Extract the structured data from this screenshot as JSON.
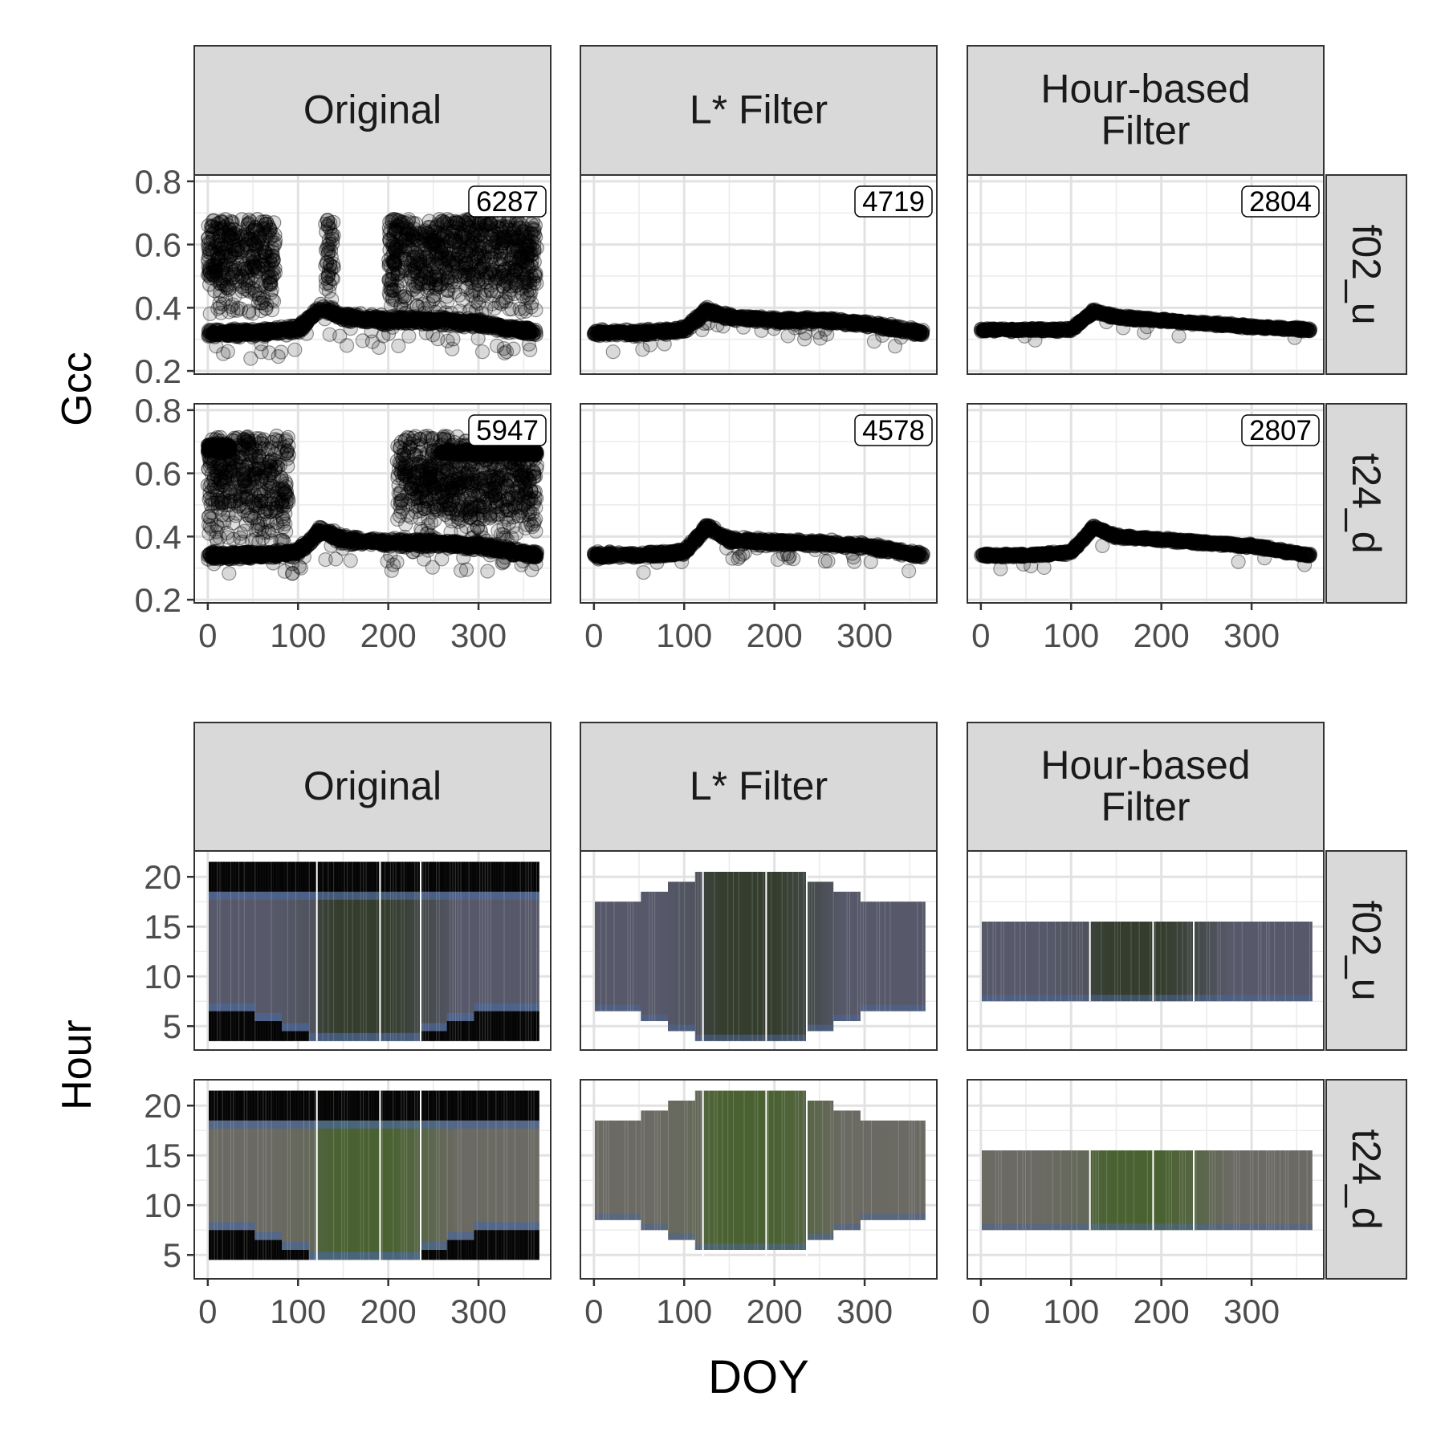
{
  "chart_data": [
    {
      "type": "scatter",
      "ylabel": "Gcc",
      "columns": [
        "Original",
        "L* Filter",
        "Hour-based Filter"
      ],
      "rows": [
        "f02_u",
        "t24_d"
      ],
      "x_ticks": [
        0,
        100,
        200,
        300
      ],
      "y_ticks": [
        0.2,
        0.4,
        0.6,
        0.8
      ],
      "xlim": [
        -15,
        380
      ],
      "ylim": [
        0.19,
        0.82
      ],
      "grid": true,
      "counts": [
        [
          "6287",
          "4719",
          "2804"
        ],
        [
          "5947",
          "4578",
          "2807"
        ]
      ],
      "series": [
        {
          "name": "",
          "panel": "Original|f02_u",
          "x": [
            0,
            50,
            100,
            125,
            150,
            200,
            250,
            300,
            365
          ],
          "y": [
            0.32,
            0.32,
            0.33,
            0.4,
            0.37,
            0.36,
            0.36,
            0.35,
            0.32
          ]
        },
        {
          "name": "",
          "panel": "L* Filter|f02_u",
          "x": [
            0,
            50,
            100,
            125,
            150,
            200,
            250,
            300,
            365
          ],
          "y": [
            0.32,
            0.32,
            0.33,
            0.39,
            0.37,
            0.36,
            0.36,
            0.35,
            0.32
          ]
        },
        {
          "name": "",
          "panel": "Hour-based Filter|f02_u",
          "x": [
            0,
            50,
            100,
            125,
            150,
            200,
            250,
            300,
            365
          ],
          "y": [
            0.33,
            0.33,
            0.33,
            0.39,
            0.37,
            0.36,
            0.35,
            0.34,
            0.33
          ]
        },
        {
          "name": "",
          "panel": "Original|t24_d",
          "x": [
            0,
            50,
            100,
            125,
            150,
            200,
            250,
            300,
            365
          ],
          "y": [
            0.34,
            0.34,
            0.35,
            0.42,
            0.39,
            0.38,
            0.38,
            0.37,
            0.34
          ]
        },
        {
          "name": "",
          "panel": "L* Filter|t24_d",
          "x": [
            0,
            50,
            100,
            125,
            150,
            200,
            250,
            300,
            365
          ],
          "y": [
            0.34,
            0.34,
            0.35,
            0.43,
            0.39,
            0.38,
            0.38,
            0.37,
            0.34
          ]
        },
        {
          "name": "",
          "panel": "Hour-based Filter|t24_d",
          "x": [
            0,
            50,
            100,
            125,
            150,
            200,
            250,
            300,
            365
          ],
          "y": [
            0.34,
            0.34,
            0.35,
            0.43,
            0.4,
            0.39,
            0.38,
            0.37,
            0.34
          ]
        }
      ],
      "original_scatter": {
        "f02_u": {
          "upper_band_x": [
            [
              0,
              75
            ],
            [
              130,
              140
            ],
            [
              200,
              365
            ]
          ],
          "upper_band_y": [
            0.45,
            0.68
          ]
        },
        "t24_d": {
          "upper_band_x": [
            [
              0,
              90
            ],
            [
              210,
              365
            ]
          ],
          "upper_band_y": [
            0.45,
            0.72
          ]
        }
      }
    },
    {
      "type": "heatmap",
      "xlabel": "DOY",
      "ylabel": "Hour",
      "columns": [
        "Original",
        "L* Filter",
        "Hour-based Filter"
      ],
      "rows": [
        "f02_u",
        "t24_d"
      ],
      "x_ticks": [
        0,
        100,
        200,
        300
      ],
      "y_ticks": [
        5,
        10,
        15,
        20
      ],
      "xlim": [
        -15,
        380
      ],
      "ylim": [
        2.6,
        22.6
      ],
      "grid": true,
      "hour_range": {
        "Original": {
          "f02_u": [
            3.5,
            21.5
          ],
          "t24_d": [
            4.5,
            21.5
          ]
        },
        "L* Filter": {
          "f02_u": [
            3.5,
            20.5
          ],
          "t24_d": [
            4.5,
            21.5
          ]
        },
        "Hour-based Filter": {
          "f02_u": [
            7.5,
            15.5
          ],
          "t24_d": [
            7.5,
            15.5
          ]
        }
      },
      "colors": {
        "f02_u": {
          "winter": "#57596a",
          "summer": "#353d2e",
          "dark": "#050505",
          "edge": "#4a6698"
        },
        "t24_d": {
          "winter": "#6b6a63",
          "summer": "#4a6232",
          "dark": "#050505",
          "edge": "#4a6698"
        }
      }
    }
  ]
}
